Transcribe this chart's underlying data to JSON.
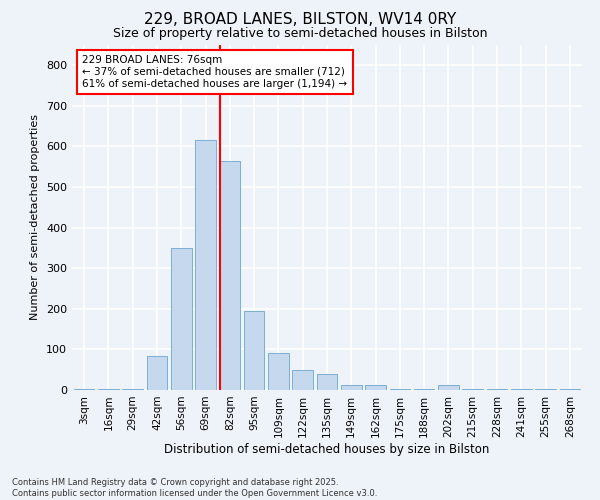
{
  "title": "229, BROAD LANES, BILSTON, WV14 0RY",
  "subtitle": "Size of property relative to semi-detached houses in Bilston",
  "xlabel": "Distribution of semi-detached houses by size in Bilston",
  "ylabel": "Number of semi-detached properties",
  "categories": [
    "3sqm",
    "16sqm",
    "29sqm",
    "42sqm",
    "56sqm",
    "69sqm",
    "82sqm",
    "95sqm",
    "109sqm",
    "122sqm",
    "135sqm",
    "149sqm",
    "162sqm",
    "175sqm",
    "188sqm",
    "202sqm",
    "215sqm",
    "228sqm",
    "241sqm",
    "255sqm",
    "268sqm"
  ],
  "values": [
    3,
    3,
    3,
    85,
    350,
    615,
    565,
    195,
    90,
    50,
    40,
    12,
    12,
    3,
    3,
    12,
    3,
    3,
    3,
    3,
    3
  ],
  "bar_color": "#c5d8ed",
  "bar_edge_color": "#7aafd4",
  "pct_smaller": 37,
  "pct_larger": 61,
  "count_smaller": 712,
  "count_larger": 1194,
  "property_size": 76,
  "ylim": [
    0,
    850
  ],
  "yticks": [
    0,
    100,
    200,
    300,
    400,
    500,
    600,
    700,
    800
  ],
  "background_color": "#eef2f9",
  "grid_color": "#ffffff",
  "footer": "Contains HM Land Registry data © Crown copyright and database right 2025.\nContains public sector information licensed under the Open Government Licence v3.0."
}
